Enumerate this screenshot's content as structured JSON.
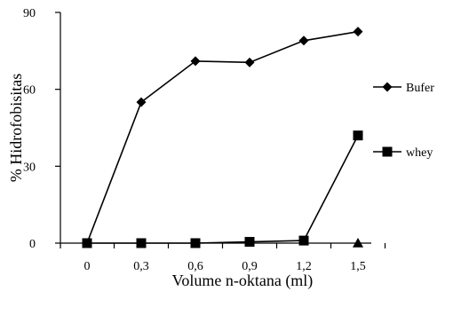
{
  "chart_data": {
    "type": "line",
    "title": "",
    "xlabel": "Volume n-oktana (ml)",
    "ylabel": "% Hidrofobisitas",
    "categories": [
      "0",
      "0,3",
      "0,6",
      "0,9",
      "1,2",
      "1,5"
    ],
    "ylim": [
      0,
      90
    ],
    "yticks": [
      "0",
      "30",
      "60",
      "90"
    ],
    "legend_position": "right",
    "series": [
      {
        "name": "Bufer",
        "marker": "diamond",
        "values": [
          0,
          55,
          71,
          70.5,
          79,
          82.5
        ]
      },
      {
        "name": "whey",
        "marker": "square",
        "values": [
          0,
          0,
          0,
          0.5,
          1,
          42
        ]
      },
      {
        "name": "",
        "marker": "triangle",
        "values": [
          null,
          null,
          null,
          null,
          null,
          0
        ]
      }
    ]
  }
}
